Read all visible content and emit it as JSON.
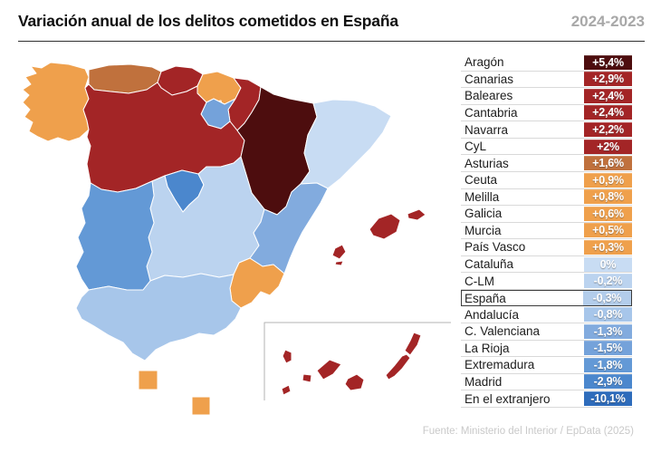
{
  "header": {
    "title": "Variación anual de los delitos cometidos en España",
    "period": "2024-2023"
  },
  "footer": {
    "source": "Fuente: Ministerio del Interior / EpData (2025)"
  },
  "chart_data": {
    "type": "choropleth-map-with-ranked-list",
    "title": "Variación anual de los delitos cometidos en España",
    "period": "2024-2023",
    "unit": "% annual variation of crimes",
    "list_position": "right",
    "highlighted_row": "España",
    "source": "Fuente: Ministerio del Interior / EpData (2025)",
    "entries": [
      {
        "name": "Aragón",
        "value": "+5,4%",
        "value_num": 5.4,
        "color": "#4d0d0e",
        "map": "aragon"
      },
      {
        "name": "Canarias",
        "value": "+2,9%",
        "value_num": 2.9,
        "color": "#a32526",
        "map": "canarias"
      },
      {
        "name": "Baleares",
        "value": "+2,4%",
        "value_num": 2.4,
        "color": "#a32526",
        "map": "baleares"
      },
      {
        "name": "Cantabria",
        "value": "+2,4%",
        "value_num": 2.4,
        "color": "#a32526",
        "map": "cantabria"
      },
      {
        "name": "Navarra",
        "value": "+2,2%",
        "value_num": 2.2,
        "color": "#a32526",
        "map": "navarra"
      },
      {
        "name": "CyL",
        "value": "+2%",
        "value_num": 2.0,
        "color": "#a32526",
        "map": "cyl"
      },
      {
        "name": "Asturias",
        "value": "+1,6%",
        "value_num": 1.6,
        "color": "#c0713d",
        "map": "asturias"
      },
      {
        "name": "Ceuta",
        "value": "+0,9%",
        "value_num": 0.9,
        "color": "#efa04c",
        "map": "ceuta"
      },
      {
        "name": "Melilla",
        "value": "+0,8%",
        "value_num": 0.8,
        "color": "#efa04c",
        "map": "melilla"
      },
      {
        "name": "Galicia",
        "value": "+0,6%",
        "value_num": 0.6,
        "color": "#efa04c",
        "map": "galicia"
      },
      {
        "name": "Murcia",
        "value": "+0,5%",
        "value_num": 0.5,
        "color": "#efa04c",
        "map": "murcia"
      },
      {
        "name": "País Vasco",
        "value": "+0,3%",
        "value_num": 0.3,
        "color": "#efa04c",
        "map": "paisvasco"
      },
      {
        "name": "Cataluña",
        "value": "0%",
        "value_num": 0.0,
        "color": "#c8dcf3",
        "map": "cataluna"
      },
      {
        "name": "C-LM",
        "value": "-0,2%",
        "value_num": -0.2,
        "color": "#bbd3ef",
        "map": "clm"
      },
      {
        "name": "España",
        "value": "-0,3%",
        "value_num": -0.3,
        "color": "#b3cdeb",
        "map": null,
        "highlight": true
      },
      {
        "name": "Andalucía",
        "value": "-0,8%",
        "value_num": -0.8,
        "color": "#a7c6ea",
        "map": "andalucia"
      },
      {
        "name": "C. Valenciana",
        "value": "-1,3%",
        "value_num": -1.3,
        "color": "#82abde",
        "map": "valencia"
      },
      {
        "name": "La Rioja",
        "value": "-1,5%",
        "value_num": -1.5,
        "color": "#74a2da",
        "map": "larioja"
      },
      {
        "name": "Extremadura",
        "value": "-1,8%",
        "value_num": -1.8,
        "color": "#6399d6",
        "map": "extremadura"
      },
      {
        "name": "Madrid",
        "value": "-2,9%",
        "value_num": -2.9,
        "color": "#4b87cd",
        "map": "madrid"
      },
      {
        "name": "En el extranjero",
        "value": "-10,1%",
        "value_num": -10.1,
        "color": "#2e6cbb",
        "map": null
      }
    ]
  }
}
